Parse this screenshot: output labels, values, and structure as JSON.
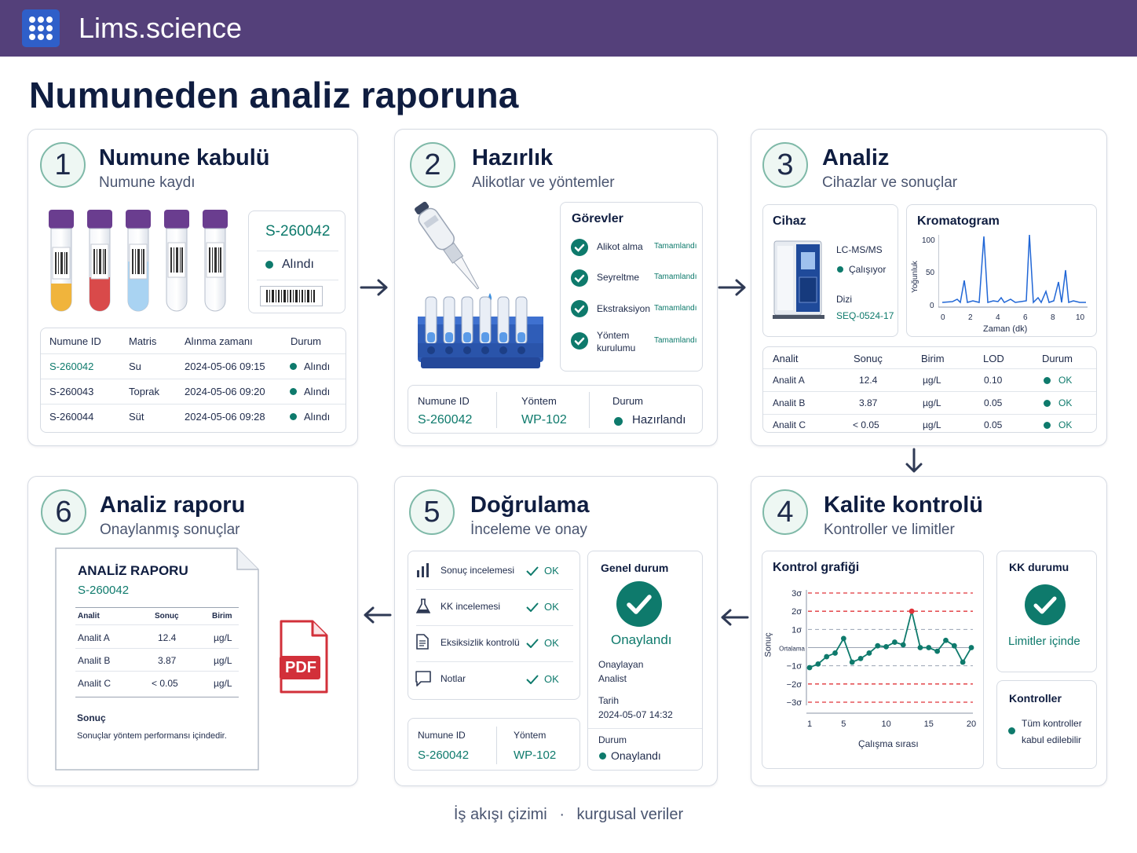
{
  "header": {
    "app_title": "Lims.science",
    "icon": "grid-icon"
  },
  "page_title": "Numuneden analiz raporuna",
  "colors": {
    "header_bg": "#54407a",
    "accent_teal": "#0e7a6c",
    "navy": "#0f1d40",
    "qc_red": "#e0343a"
  },
  "step1": {
    "num": "1",
    "title": "Numune kabulü",
    "subtitle": "Numune kaydı",
    "sample_id": "S-260042",
    "status": "Alındı",
    "table": {
      "headers": [
        "Numune ID",
        "Matris",
        "Alınma zamanı",
        "Durum"
      ],
      "rows": [
        [
          "S-260042",
          "Su",
          "2024-05-06 09:15",
          "Alındı"
        ],
        [
          "S-260043",
          "Toprak",
          "2024-05-06 09:20",
          "Alındı"
        ],
        [
          "S-260044",
          "Süt",
          "2024-05-06 09:28",
          "Alındı"
        ]
      ]
    }
  },
  "step2": {
    "num": "2",
    "title": "Hazırlık",
    "subtitle": "Alikotlar ve yöntemler",
    "tasks_title": "Görevler",
    "tasks": [
      {
        "name": "Alikot alma",
        "status": "Tamamlandı"
      },
      {
        "name": "Seyreltme",
        "status": "Tamamlandı"
      },
      {
        "name": "Ekstraksiyon",
        "status": "Tamamlandı"
      },
      {
        "name_l1": "Yöntem",
        "name_l2": "kurulumu",
        "status": "Tamamlandı"
      }
    ],
    "info": {
      "id_label": "Numune ID",
      "id_value": "S-260042",
      "method_label": "Yöntem",
      "method_value": "WP-102",
      "status_label": "Durum",
      "status_value": "Hazırlandı"
    }
  },
  "step3": {
    "num": "3",
    "title": "Analiz",
    "subtitle": "Cihazlar ve sonuçlar",
    "device_title": "Cihaz",
    "device_name": "LC-MS/MS",
    "device_status": "Çalışıyor",
    "sequence_label": "Dizi",
    "sequence_value": "SEQ-0524-17",
    "chrom_title": "Kromatogram",
    "chrom_ylabel": "Yoğunluk",
    "chrom_xlabel": "Zaman (dk)",
    "chrom_yticks": [
      "100",
      "50",
      "0"
    ],
    "chrom_xticks": [
      "0",
      "2",
      "4",
      "6",
      "8",
      "10"
    ],
    "table": {
      "headers": [
        "Analit",
        "Sonuç",
        "Birim",
        "LOD",
        "Durum"
      ],
      "rows": [
        [
          "Analit A",
          "12.4",
          "µg/L",
          "0.10",
          "OK"
        ],
        [
          "Analit B",
          "3.87",
          "µg/L",
          "0.05",
          "OK"
        ],
        [
          "Analit C",
          "< 0.05",
          "µg/L",
          "0.05",
          "OK"
        ]
      ]
    }
  },
  "chart_data": {
    "type": "line",
    "title": "Kontrol grafiği",
    "xlabel": "Çalışma sırası",
    "ylabel": "Sonuç",
    "x": [
      1,
      2,
      3,
      4,
      5,
      6,
      7,
      8,
      9,
      10,
      11,
      12,
      13,
      14,
      15,
      16,
      17,
      18,
      19,
      20
    ],
    "values": [
      -1.1,
      -0.9,
      -0.5,
      -0.3,
      0.5,
      -0.8,
      -0.6,
      -0.3,
      0.1,
      0.05,
      0.3,
      0.15,
      2.0,
      0.0,
      0.0,
      -0.2,
      0.4,
      0.1,
      -0.8,
      0.0
    ],
    "out_of_control_index": 12,
    "ylim": [
      -3,
      3
    ],
    "y_tick_labels": [
      "3σ",
      "2σ",
      "1σ",
      "Ortalama",
      "−1σ",
      "−2σ",
      "−3σ"
    ],
    "x_tick_labels": [
      "1",
      "5",
      "10",
      "15",
      "20"
    ],
    "x_ticks": [
      1,
      5,
      10,
      15,
      20
    ],
    "limits": {
      "control_sigma": 3,
      "warning_sigma": 2
    }
  },
  "step4": {
    "num": "4",
    "title": "Kalite kontrolü",
    "subtitle": "Kontroller ve limitler",
    "kk_title": "KK durumu",
    "kk_status": "Limitler içinde",
    "controls_title": "Kontroller",
    "controls_l1": "Tüm kontroller",
    "controls_l2": "kabul edilebilir"
  },
  "step5": {
    "num": "5",
    "title": "Doğrulama",
    "subtitle": "İnceleme ve onay",
    "checks": [
      {
        "icon": "bar-chart-icon",
        "label": "Sonuç incelemesi",
        "status": "OK"
      },
      {
        "icon": "flask-icon",
        "label": "KK incelemesi",
        "status": "OK"
      },
      {
        "icon": "document-icon",
        "label": "Eksiksizlik kontrolü",
        "status": "OK"
      },
      {
        "icon": "note-icon",
        "label": "Notlar",
        "status": "OK"
      }
    ],
    "overall_title": "Genel durum",
    "overall_status": "Onaylandı",
    "approver_label": "Onaylayan",
    "approver_value": "Analist",
    "date_label": "Tarih",
    "date_value": "2024-05-07 14:32",
    "status_label": "Durum",
    "status_value": "Onaylandı",
    "info": {
      "id_label": "Numune ID",
      "id_value": "S-260042",
      "method_label": "Yöntem",
      "method_value": "WP-102"
    }
  },
  "step6": {
    "num": "6",
    "title": "Analiz raporu",
    "subtitle": "Onaylanmış sonuçlar",
    "report_title": "ANALİZ RAPORU",
    "report_id": "S-260042",
    "table": {
      "headers": [
        "Analit",
        "Sonuç",
        "Birim"
      ],
      "rows": [
        [
          "Analit A",
          "12.4",
          "µg/L"
        ],
        [
          "Analit B",
          "3.87",
          "µg/L"
        ],
        [
          "Analit C",
          "< 0.05",
          "µg/L"
        ]
      ]
    },
    "conclusion_label": "Sonuç",
    "conclusion_text": "Sonuçlar yöntem performansı içindedir.",
    "pdf_label": "PDF"
  },
  "footer": {
    "left": "İş akışı çizimi",
    "sep": "·",
    "right": "kurgusal veriler"
  }
}
